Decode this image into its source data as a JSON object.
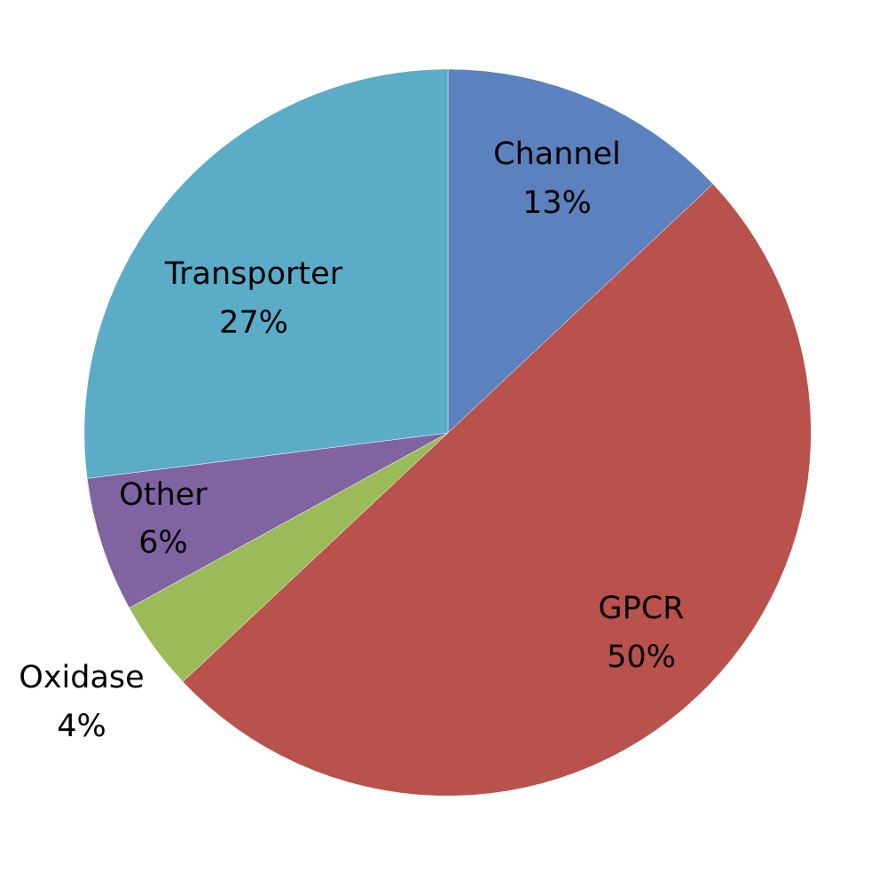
{
  "chart_data": {
    "type": "pie",
    "title": "",
    "categories": [
      "Channel",
      "GPCR",
      "Oxidase",
      "Other",
      "Transporter"
    ],
    "values": [
      13,
      50,
      4,
      6,
      27
    ],
    "value_labels": [
      "13%",
      "50%",
      "4%",
      "6%",
      "27%"
    ],
    "colors": [
      "#5B82BF",
      "#B9514D",
      "#9BBB59",
      "#8064A2",
      "#5BACC6"
    ],
    "start": "top",
    "direction": "clockwise",
    "legend": "none",
    "labels_inside": true
  }
}
